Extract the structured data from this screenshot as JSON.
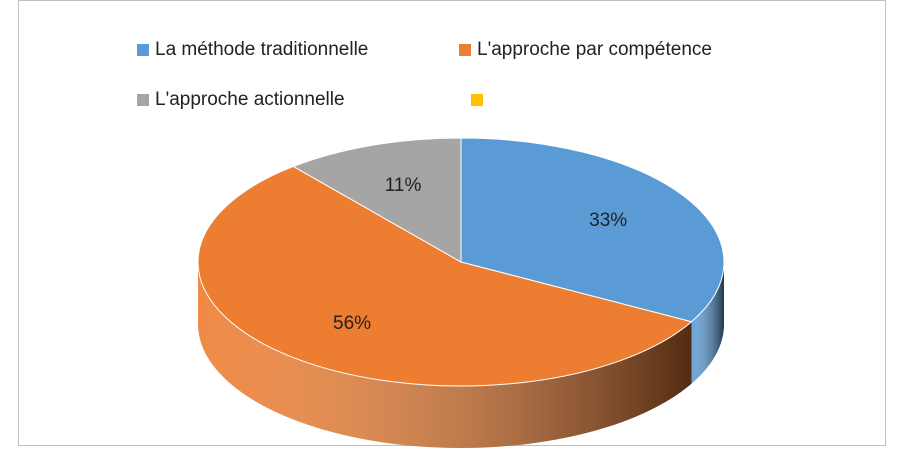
{
  "chart_data": {
    "type": "pie",
    "categories": [
      "La méthode traditionnelle",
      "L'approche par compétence",
      "L'approche actionnelle",
      null
    ],
    "values": [
      33,
      56,
      11,
      0
    ],
    "value_labels": [
      "33%",
      "56%",
      "11%",
      null
    ],
    "colors": [
      "#5b9bd5",
      "#ed7d31",
      "#a5a5a5",
      "#ffc000"
    ],
    "legend": "top"
  }
}
